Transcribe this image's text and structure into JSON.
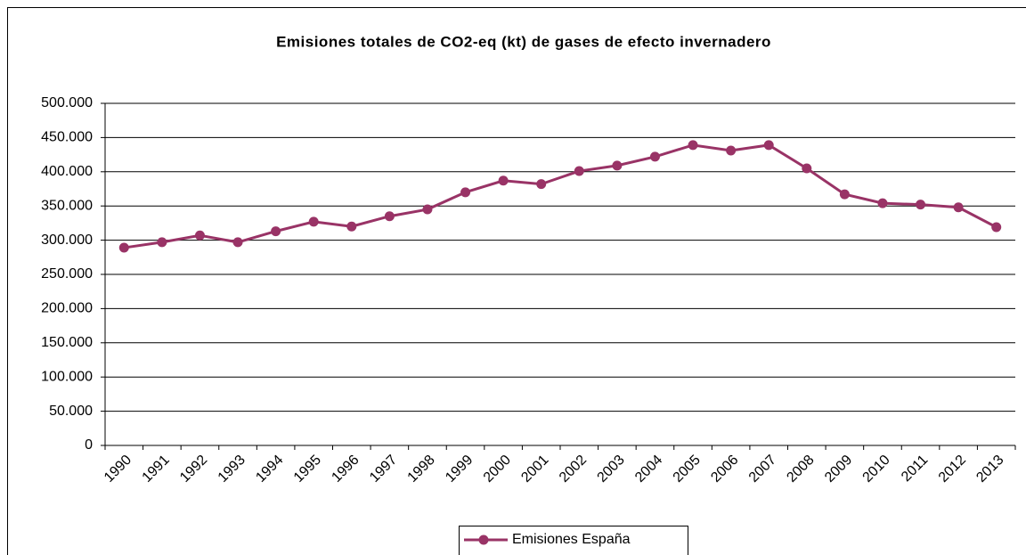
{
  "chart_data": {
    "type": "line",
    "title": "Emisiones totales de CO2-eq (kt) de gases de efecto invernadero",
    "categories": [
      "1990",
      "1991",
      "1992",
      "1993",
      "1994",
      "1995",
      "1996",
      "1997",
      "1998",
      "1999",
      "2000",
      "2001",
      "2002",
      "2003",
      "2004",
      "2005",
      "2006",
      "2007",
      "2008",
      "2009",
      "2010",
      "2011",
      "2012",
      "2013"
    ],
    "series": [
      {
        "name": "Emisiones España",
        "color": "#993366",
        "values": [
          289000,
          297000,
          307000,
          297000,
          313000,
          327000,
          320000,
          335000,
          345000,
          370000,
          387000,
          382000,
          401000,
          409000,
          422000,
          439000,
          431000,
          439000,
          405000,
          367000,
          354000,
          352000,
          348000,
          319000
        ]
      }
    ],
    "ylim": [
      0,
      500000
    ],
    "yticks": [
      0,
      {
        "value": 50000,
        "label": "50.000"
      },
      {
        "value": 100000,
        "label": "100.000"
      },
      {
        "value": 150000,
        "label": "150.000"
      },
      {
        "value": 200000,
        "label": "200.000"
      },
      {
        "value": 250000,
        "label": "250.000"
      },
      {
        "value": 300000,
        "label": "300.000"
      },
      {
        "value": 350000,
        "label": "350.000"
      },
      {
        "value": 400000,
        "label": "400.000"
      },
      {
        "value": 450000,
        "label": "450.000"
      },
      {
        "value": 500000,
        "label": "500.000"
      }
    ],
    "grid": true,
    "legend": "bottom"
  }
}
